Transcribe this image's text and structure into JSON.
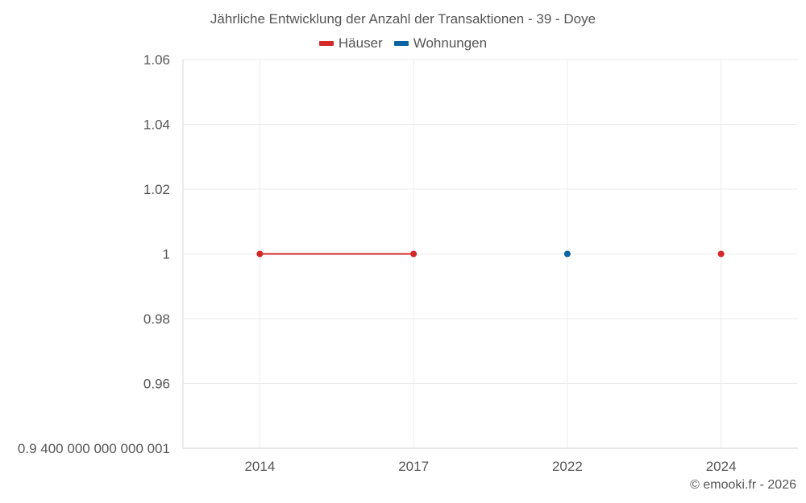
{
  "chart_data": {
    "type": "line",
    "title": "Jährliche Entwicklung der Anzahl der Transaktionen - 39 - Doye",
    "xlabel": "",
    "ylabel": "",
    "categories": [
      "2014",
      "2017",
      "2022",
      "2024"
    ],
    "y_tick_labels": [
      "1.06",
      "1.04",
      "1.02",
      "1",
      "0.98",
      "0.96",
      "0.9 400 000 000 000 001"
    ],
    "y_tick_values": [
      1.06,
      1.04,
      1.02,
      1.0,
      0.98,
      0.96,
      0.94
    ],
    "ylim": [
      0.94,
      1.06
    ],
    "grid": true,
    "legend_position": "top-center",
    "series": [
      {
        "name": "Häuser",
        "color": "#d42a2a",
        "values": [
          1,
          1,
          null,
          1
        ]
      },
      {
        "name": "Wohnungen",
        "color": "#0c63a4",
        "values": [
          null,
          null,
          1,
          null
        ]
      }
    ]
  },
  "credit": "© emooki.fr - 2026"
}
